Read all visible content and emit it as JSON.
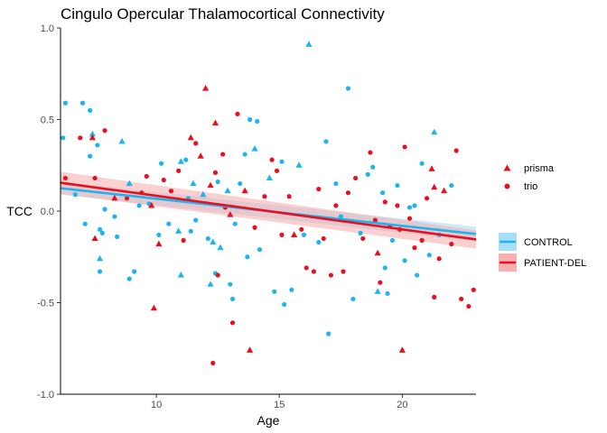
{
  "chart_data": {
    "type": "scatter",
    "title": "Cingulo Opercular Thalamocortical Connectivity",
    "xlabel": "Age",
    "ylabel": "TCC",
    "xlim": [
      6.1,
      23.0
    ],
    "ylim": [
      -1.0,
      1.0
    ],
    "x_ticks": [
      10,
      15,
      20
    ],
    "x_tick_labels": [
      "10",
      "15",
      "20"
    ],
    "y_ticks": [
      -1.0,
      -0.5,
      0.0,
      0.5,
      1.0
    ],
    "y_tick_labels": [
      "-1.0",
      "-0.5",
      "0.0",
      "0.5",
      "1.0"
    ],
    "grid": false,
    "colors": {
      "CONTROL": "#1eb4f0",
      "PATIENT-DEL": "#e8101f"
    },
    "shape_legend": [
      {
        "label": "prisma",
        "shape": "triangle"
      },
      {
        "label": "trio",
        "shape": "circle"
      }
    ],
    "group_legend": [
      {
        "label": "CONTROL",
        "color": "#1eb4f0"
      },
      {
        "label": "PATIENT-DEL",
        "color": "#e8101f"
      }
    ],
    "legend_position": "right",
    "fit_lines": [
      {
        "group": "CONTROL",
        "x": [
          6.1,
          23.0
        ],
        "y": [
          0.125,
          -0.125
        ],
        "ci_halfwidth": [
          0.035,
          0.04
        ]
      },
      {
        "group": "PATIENT-DEL",
        "x": [
          6.1,
          23.0
        ],
        "y": [
          0.155,
          -0.155
        ],
        "ci_halfwidth": [
          0.06,
          0.05
        ]
      }
    ],
    "series": [
      {
        "name": "CONTROL",
        "points": [
          [
            6.2,
            0.4,
            "circle"
          ],
          [
            6.3,
            0.59,
            "circle"
          ],
          [
            6.7,
            0.09,
            "circle"
          ],
          [
            7.0,
            0.59,
            "circle"
          ],
          [
            7.1,
            -0.07,
            "circle"
          ],
          [
            7.3,
            0.55,
            "circle"
          ],
          [
            7.3,
            0.3,
            "circle"
          ],
          [
            7.4,
            0.42,
            "triangle"
          ],
          [
            7.6,
            0.36,
            "circle"
          ],
          [
            7.7,
            -0.1,
            "circle"
          ],
          [
            7.7,
            -0.26,
            "triangle"
          ],
          [
            7.8,
            -0.12,
            "circle"
          ],
          [
            7.9,
            0.01,
            "circle"
          ],
          [
            7.7,
            -0.33,
            "circle"
          ],
          [
            8.3,
            -0.03,
            "circle"
          ],
          [
            8.4,
            -0.14,
            "circle"
          ],
          [
            8.6,
            0.38,
            "triangle"
          ],
          [
            8.9,
            0.15,
            "triangle"
          ],
          [
            8.9,
            -0.37,
            "circle"
          ],
          [
            9.1,
            -0.33,
            "circle"
          ],
          [
            9.3,
            0.03,
            "circle"
          ],
          [
            9.7,
            0.04,
            "circle"
          ],
          [
            10.1,
            -0.13,
            "circle"
          ],
          [
            10.2,
            0.26,
            "circle"
          ],
          [
            10.5,
            -0.07,
            "circle"
          ],
          [
            10.9,
            -0.11,
            "triangle"
          ],
          [
            11.0,
            0.27,
            "triangle"
          ],
          [
            11.0,
            -0.35,
            "triangle"
          ],
          [
            11.2,
            0.28,
            "circle"
          ],
          [
            11.3,
            0.07,
            "circle"
          ],
          [
            11.4,
            -0.11,
            "circle"
          ],
          [
            11.5,
            0.15,
            "triangle"
          ],
          [
            11.6,
            -0.05,
            "circle"
          ],
          [
            11.9,
            0.09,
            "triangle"
          ],
          [
            12.1,
            -0.15,
            "circle"
          ],
          [
            12.2,
            -0.4,
            "triangle"
          ],
          [
            12.3,
            -0.17,
            "triangle"
          ],
          [
            12.4,
            -0.34,
            "circle"
          ],
          [
            12.5,
            0.16,
            "circle"
          ],
          [
            12.6,
            -0.2,
            "triangle"
          ],
          [
            12.9,
            0.11,
            "triangle"
          ],
          [
            13.0,
            -0.4,
            "circle"
          ],
          [
            13.1,
            -0.48,
            "circle"
          ],
          [
            13.2,
            -0.07,
            "circle"
          ],
          [
            13.4,
            0.15,
            "circle"
          ],
          [
            13.6,
            0.31,
            "circle"
          ],
          [
            13.7,
            -0.25,
            "circle"
          ],
          [
            13.8,
            0.5,
            "circle"
          ],
          [
            14.0,
            0.34,
            "triangle"
          ],
          [
            14.1,
            0.49,
            "circle"
          ],
          [
            14.2,
            -0.21,
            "circle"
          ],
          [
            14.6,
            0.18,
            "triangle"
          ],
          [
            14.8,
            -0.44,
            "circle"
          ],
          [
            15.1,
            0.27,
            "circle"
          ],
          [
            15.2,
            -0.51,
            "circle"
          ],
          [
            15.5,
            -0.43,
            "circle"
          ],
          [
            15.8,
            0.25,
            "triangle"
          ],
          [
            16.0,
            -0.13,
            "circle"
          ],
          [
            16.2,
            0.91,
            "triangle"
          ],
          [
            16.6,
            -0.17,
            "circle"
          ],
          [
            16.9,
            0.38,
            "circle"
          ],
          [
            17.0,
            -0.67,
            "circle"
          ],
          [
            17.3,
            0.15,
            "circle"
          ],
          [
            17.5,
            -0.03,
            "circle"
          ],
          [
            17.8,
            0.67,
            "circle"
          ],
          [
            18.0,
            -0.48,
            "circle"
          ],
          [
            18.3,
            -0.12,
            "circle"
          ],
          [
            18.6,
            0.2,
            "circle"
          ],
          [
            18.8,
            0.24,
            "circle"
          ],
          [
            19.0,
            -0.44,
            "triangle"
          ],
          [
            19.2,
            0.1,
            "circle"
          ],
          [
            19.3,
            -0.31,
            "circle"
          ],
          [
            19.4,
            -0.45,
            "circle"
          ],
          [
            19.6,
            -0.16,
            "circle"
          ],
          [
            19.8,
            0.14,
            "circle"
          ],
          [
            20.1,
            -0.27,
            "circle"
          ],
          [
            20.3,
            0.02,
            "circle"
          ],
          [
            20.5,
            0.03,
            "circle"
          ],
          [
            20.6,
            -0.35,
            "circle"
          ],
          [
            20.8,
            0.26,
            "circle"
          ],
          [
            21.1,
            -0.24,
            "circle"
          ],
          [
            21.3,
            0.43,
            "triangle"
          ],
          [
            21.5,
            -0.13,
            "circle"
          ],
          [
            22.0,
            0.14,
            "circle"
          ]
        ]
      },
      {
        "name": "PATIENT-DEL",
        "points": [
          [
            6.3,
            0.18,
            "circle"
          ],
          [
            6.9,
            0.4,
            "circle"
          ],
          [
            7.4,
            0.4,
            "triangle"
          ],
          [
            7.5,
            0.18,
            "circle"
          ],
          [
            7.5,
            -0.15,
            "triangle"
          ],
          [
            7.9,
            0.44,
            "circle"
          ],
          [
            8.3,
            0.07,
            "triangle"
          ],
          [
            8.8,
            0.07,
            "circle"
          ],
          [
            9.4,
            0.1,
            "circle"
          ],
          [
            9.6,
            0.19,
            "circle"
          ],
          [
            9.8,
            0.03,
            "triangle"
          ],
          [
            9.9,
            -0.53,
            "triangle"
          ],
          [
            10.1,
            -0.18,
            "triangle"
          ],
          [
            10.3,
            0.17,
            "circle"
          ],
          [
            10.6,
            0.11,
            "circle"
          ],
          [
            10.9,
            0.22,
            "circle"
          ],
          [
            11.1,
            -0.16,
            "circle"
          ],
          [
            11.4,
            0.4,
            "triangle"
          ],
          [
            11.6,
            0.37,
            "circle"
          ],
          [
            11.8,
            0.3,
            "triangle"
          ],
          [
            12.0,
            0.67,
            "triangle"
          ],
          [
            12.2,
            0.14,
            "triangle"
          ],
          [
            12.4,
            0.21,
            "circle"
          ],
          [
            12.4,
            0.48,
            "triangle"
          ],
          [
            12.5,
            -0.35,
            "circle"
          ],
          [
            12.7,
            0.31,
            "circle"
          ],
          [
            12.8,
            0.02,
            "circle"
          ],
          [
            13.0,
            -0.02,
            "triangle"
          ],
          [
            13.1,
            -0.61,
            "circle"
          ],
          [
            13.3,
            0.53,
            "circle"
          ],
          [
            13.6,
            0.11,
            "triangle"
          ],
          [
            13.8,
            -0.76,
            "triangle"
          ],
          [
            14.0,
            -0.09,
            "circle"
          ],
          [
            14.4,
            0.08,
            "circle"
          ],
          [
            14.7,
            0.28,
            "circle"
          ],
          [
            14.9,
            0.22,
            "circle"
          ],
          [
            15.1,
            -0.13,
            "circle"
          ],
          [
            15.4,
            0.08,
            "circle"
          ],
          [
            15.6,
            -0.13,
            "triangle"
          ],
          [
            15.9,
            -0.1,
            "circle"
          ],
          [
            16.1,
            -0.31,
            "circle"
          ],
          [
            16.4,
            -0.33,
            "circle"
          ],
          [
            16.6,
            0.12,
            "circle"
          ],
          [
            16.8,
            -0.15,
            "circle"
          ],
          [
            17.1,
            -0.35,
            "circle"
          ],
          [
            17.3,
            0.03,
            "circle"
          ],
          [
            17.6,
            -0.33,
            "circle"
          ],
          [
            17.8,
            0.1,
            "circle"
          ],
          [
            18.1,
            0.18,
            "circle"
          ],
          [
            18.4,
            -0.15,
            "circle"
          ],
          [
            18.7,
            0.32,
            "circle"
          ],
          [
            18.9,
            -0.05,
            "circle"
          ],
          [
            19.0,
            -0.23,
            "triangle"
          ],
          [
            19.1,
            -0.39,
            "circle"
          ],
          [
            19.3,
            0.05,
            "circle"
          ],
          [
            19.5,
            -0.08,
            "circle"
          ],
          [
            19.8,
            0.03,
            "circle"
          ],
          [
            19.9,
            -0.1,
            "circle"
          ],
          [
            20.0,
            -0.76,
            "triangle"
          ],
          [
            20.1,
            0.35,
            "circle"
          ],
          [
            20.3,
            -0.04,
            "circle"
          ],
          [
            20.5,
            -0.2,
            "circle"
          ],
          [
            20.8,
            -0.16,
            "circle"
          ],
          [
            21.0,
            0.07,
            "circle"
          ],
          [
            21.2,
            0.23,
            "triangle"
          ],
          [
            21.3,
            -0.47,
            "circle"
          ],
          [
            21.5,
            -0.26,
            "circle"
          ],
          [
            21.7,
            0.11,
            "triangle"
          ],
          [
            22.0,
            -0.18,
            "circle"
          ],
          [
            22.2,
            0.33,
            "circle"
          ],
          [
            22.4,
            -0.48,
            "circle"
          ],
          [
            22.7,
            -0.52,
            "circle"
          ],
          [
            22.9,
            -0.43,
            "circle"
          ],
          [
            12.3,
            -0.83,
            "circle"
          ],
          [
            21.3,
            0.13,
            "triangle"
          ]
        ]
      }
    ]
  }
}
